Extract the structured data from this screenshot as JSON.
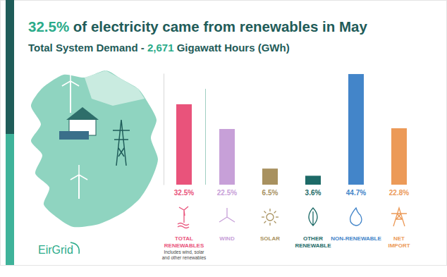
{
  "chart_data": {
    "type": "bar",
    "title": "32.5% of electricity came from renewables in May",
    "subtitle": "Total System Demand - 2,671 Gigawatt Hours (GWh)",
    "categories": [
      "TOTAL RENEWABLES",
      "WIND",
      "SOLAR",
      "OTHER RENEWABLE",
      "NON-RENEWABLE",
      "NET IMPORT"
    ],
    "values": [
      32.5,
      22.5,
      6.5,
      3.6,
      44.7,
      22.8
    ],
    "value_labels": [
      "32.5%",
      "22.5%",
      "6.5%",
      "3.6%",
      "44.7%",
      "22.8%"
    ],
    "colors": [
      "#e9537b",
      "#c7a0d8",
      "#a8915f",
      "#1d6a67",
      "#4385c9",
      "#ec9a58"
    ],
    "ylim": [
      0,
      45
    ],
    "tick_labels": "x",
    "grid": false,
    "data_labels": true,
    "annotation": "Includes wind, solar and other renewables",
    "logo": "EirGrid"
  }
}
